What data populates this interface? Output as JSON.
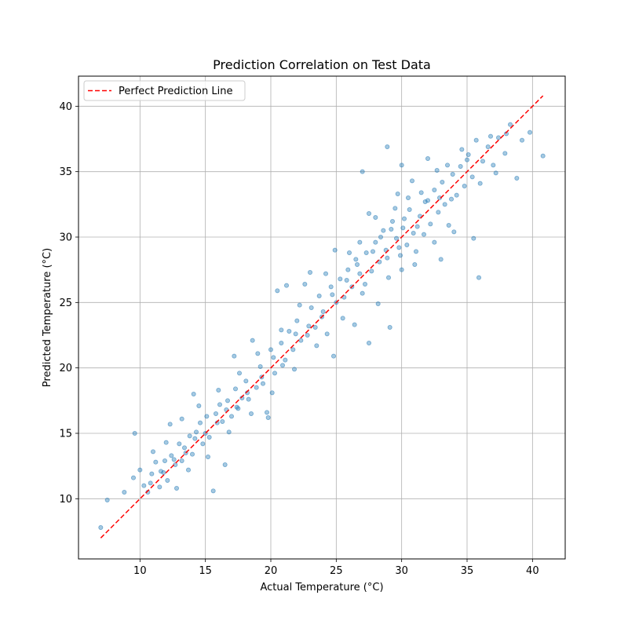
{
  "chart_data": {
    "type": "scatter",
    "title": "Prediction Correlation on Test Data",
    "xlabel": "Actual Temperature (°C)",
    "ylabel": "Predicted Temperature (°C)",
    "xlim": [
      5.3,
      42.5
    ],
    "ylim": [
      5.4,
      42.3
    ],
    "xticks": [
      10,
      15,
      20,
      25,
      30,
      35,
      40
    ],
    "yticks": [
      10,
      15,
      20,
      25,
      30,
      35,
      40
    ],
    "grid": true,
    "legend": {
      "placement": "top-left",
      "entries": [
        "Perfect Prediction Line"
      ]
    },
    "colors": {
      "points": "#1f77b4",
      "reference_line": "#ff0000",
      "grid": "#b0b0b0"
    },
    "reference_line": {
      "name": "Perfect Prediction Line",
      "x": [
        7.0,
        40.8
      ],
      "y": [
        7.0,
        40.8
      ],
      "style": "dashed"
    },
    "series": [
      {
        "points": [
          [
            7.0,
            7.8
          ],
          [
            7.5,
            9.9
          ],
          [
            8.8,
            10.5
          ],
          [
            9.6,
            15.0
          ],
          [
            9.5,
            11.6
          ],
          [
            10.0,
            12.2
          ],
          [
            10.3,
            11.0
          ],
          [
            10.6,
            10.5
          ],
          [
            10.9,
            11.9
          ],
          [
            11.2,
            12.8
          ],
          [
            11.6,
            12.1
          ],
          [
            11.9,
            12.9
          ],
          [
            12.1,
            11.4
          ],
          [
            12.4,
            13.3
          ],
          [
            12.7,
            12.6
          ],
          [
            13.0,
            14.2
          ],
          [
            13.2,
            12.9
          ],
          [
            13.5,
            13.5
          ],
          [
            13.8,
            14.8
          ],
          [
            14.0,
            13.4
          ],
          [
            14.3,
            15.1
          ],
          [
            14.6,
            15.8
          ],
          [
            14.8,
            14.2
          ],
          [
            15.1,
            16.3
          ],
          [
            15.3,
            14.7
          ],
          [
            15.6,
            10.6
          ],
          [
            15.8,
            16.5
          ],
          [
            16.1,
            17.2
          ],
          [
            16.3,
            15.9
          ],
          [
            16.5,
            12.6
          ],
          [
            16.7,
            17.5
          ],
          [
            17.0,
            16.3
          ],
          [
            17.3,
            18.4
          ],
          [
            17.5,
            16.9
          ],
          [
            17.8,
            17.7
          ],
          [
            18.1,
            19.0
          ],
          [
            18.3,
            17.6
          ],
          [
            18.6,
            22.1
          ],
          [
            18.9,
            18.5
          ],
          [
            19.2,
            20.1
          ],
          [
            19.4,
            18.8
          ],
          [
            19.7,
            16.6
          ],
          [
            20.0,
            21.4
          ],
          [
            20.3,
            19.6
          ],
          [
            20.5,
            25.9
          ],
          [
            20.8,
            21.9
          ],
          [
            21.1,
            20.6
          ],
          [
            21.4,
            22.8
          ],
          [
            21.7,
            21.4
          ],
          [
            22.0,
            23.6
          ],
          [
            22.3,
            22.1
          ],
          [
            22.6,
            26.4
          ],
          [
            22.9,
            23.2
          ],
          [
            23.1,
            24.6
          ],
          [
            23.4,
            23.1
          ],
          [
            23.7,
            25.5
          ],
          [
            24.0,
            24.3
          ],
          [
            24.3,
            22.6
          ],
          [
            24.6,
            26.2
          ],
          [
            24.8,
            20.9
          ],
          [
            25.0,
            25.0
          ],
          [
            25.3,
            26.8
          ],
          [
            25.6,
            25.4
          ],
          [
            25.9,
            27.5
          ],
          [
            26.2,
            26.2
          ],
          [
            26.5,
            28.3
          ],
          [
            26.8,
            27.2
          ],
          [
            27.0,
            25.7
          ],
          [
            27.3,
            28.8
          ],
          [
            27.5,
            21.9
          ],
          [
            27.7,
            27.4
          ],
          [
            28.0,
            29.6
          ],
          [
            28.3,
            28.1
          ],
          [
            28.6,
            30.5
          ],
          [
            28.8,
            29.0
          ],
          [
            28.9,
            36.9
          ],
          [
            29.1,
            23.1
          ],
          [
            29.3,
            31.2
          ],
          [
            29.6,
            29.9
          ],
          [
            29.9,
            28.6
          ],
          [
            30.1,
            30.7
          ],
          [
            30.4,
            29.4
          ],
          [
            30.6,
            32.1
          ],
          [
            30.9,
            30.3
          ],
          [
            31.1,
            28.9
          ],
          [
            31.4,
            31.6
          ],
          [
            31.7,
            30.2
          ],
          [
            32.0,
            32.8
          ],
          [
            32.2,
            31.0
          ],
          [
            32.5,
            33.6
          ],
          [
            32.8,
            31.9
          ],
          [
            33.1,
            34.2
          ],
          [
            33.3,
            32.5
          ],
          [
            33.6,
            30.9
          ],
          [
            33.9,
            34.8
          ],
          [
            34.2,
            33.2
          ],
          [
            34.5,
            35.4
          ],
          [
            34.8,
            33.9
          ],
          [
            35.1,
            36.3
          ],
          [
            35.4,
            34.6
          ],
          [
            35.7,
            37.4
          ],
          [
            35.9,
            26.9
          ],
          [
            36.2,
            35.8
          ],
          [
            36.6,
            36.9
          ],
          [
            37.0,
            35.5
          ],
          [
            37.4,
            37.6
          ],
          [
            37.9,
            36.4
          ],
          [
            38.3,
            38.6
          ],
          [
            38.8,
            34.5
          ],
          [
            39.2,
            37.4
          ],
          [
            39.8,
            38.0
          ],
          [
            40.8,
            36.2
          ],
          [
            28.0,
            31.5
          ],
          [
            29.5,
            32.2
          ],
          [
            30.5,
            33.0
          ],
          [
            31.5,
            33.4
          ],
          [
            32.7,
            35.1
          ],
          [
            33.5,
            35.5
          ],
          [
            30.0,
            27.5
          ],
          [
            31.0,
            27.9
          ],
          [
            32.5,
            29.6
          ],
          [
            29.0,
            26.9
          ],
          [
            27.5,
            31.8
          ],
          [
            26.8,
            29.6
          ],
          [
            27.2,
            26.4
          ],
          [
            26.0,
            28.8
          ],
          [
            25.5,
            23.8
          ],
          [
            24.2,
            27.2
          ],
          [
            23.5,
            21.7
          ],
          [
            22.2,
            24.8
          ],
          [
            21.8,
            19.9
          ],
          [
            20.8,
            22.9
          ],
          [
            20.1,
            18.1
          ],
          [
            19.0,
            21.1
          ],
          [
            18.5,
            16.5
          ],
          [
            17.6,
            19.6
          ],
          [
            16.8,
            15.1
          ],
          [
            16.0,
            18.3
          ],
          [
            15.2,
            13.2
          ],
          [
            14.5,
            17.1
          ],
          [
            13.7,
            12.2
          ],
          [
            13.2,
            16.1
          ],
          [
            12.8,
            10.8
          ],
          [
            12.0,
            14.3
          ],
          [
            11.5,
            10.9
          ],
          [
            11.0,
            13.6
          ],
          [
            28.4,
            30.0
          ],
          [
            29.2,
            30.6
          ],
          [
            30.2,
            31.4
          ],
          [
            31.2,
            30.8
          ],
          [
            31.8,
            32.7
          ],
          [
            32.9,
            33.0
          ],
          [
            33.8,
            32.9
          ],
          [
            34.6,
            36.7
          ],
          [
            36.0,
            34.1
          ],
          [
            35.0,
            35.9
          ],
          [
            29.8,
            29.2
          ],
          [
            28.9,
            28.4
          ],
          [
            27.8,
            28.9
          ],
          [
            26.6,
            27.9
          ],
          [
            25.8,
            26.7
          ],
          [
            24.7,
            25.6
          ],
          [
            23.9,
            23.9
          ],
          [
            22.8,
            22.5
          ],
          [
            21.9,
            22.6
          ],
          [
            20.9,
            20.2
          ],
          [
            20.2,
            20.8
          ],
          [
            19.3,
            19.3
          ],
          [
            18.2,
            18.1
          ],
          [
            17.4,
            17.0
          ],
          [
            16.6,
            16.8
          ],
          [
            15.9,
            15.8
          ],
          [
            15.0,
            15.0
          ],
          [
            14.2,
            14.6
          ],
          [
            13.4,
            13.9
          ],
          [
            12.6,
            13.0
          ],
          [
            11.8,
            12.0
          ],
          [
            10.8,
            11.2
          ],
          [
            38.0,
            37.9
          ],
          [
            36.8,
            37.7
          ],
          [
            37.2,
            34.9
          ],
          [
            24.9,
            29.0
          ],
          [
            23.0,
            27.3
          ],
          [
            21.2,
            26.3
          ],
          [
            19.8,
            16.2
          ],
          [
            27.0,
            35.0
          ],
          [
            30.0,
            35.5
          ],
          [
            32.0,
            36.0
          ],
          [
            35.5,
            29.9
          ],
          [
            28.2,
            24.9
          ],
          [
            26.4,
            23.3
          ],
          [
            17.2,
            20.9
          ],
          [
            14.1,
            18.0
          ],
          [
            12.3,
            15.7
          ],
          [
            33.0,
            28.3
          ],
          [
            34.0,
            30.4
          ],
          [
            30.8,
            34.3
          ],
          [
            29.7,
            33.3
          ]
        ]
      }
    ]
  }
}
